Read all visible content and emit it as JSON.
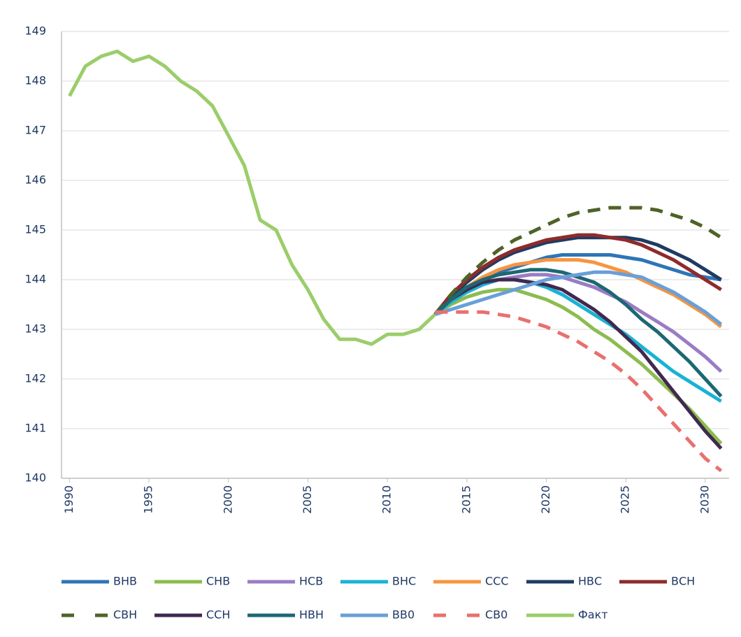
{
  "chart_data": {
    "type": "line",
    "x": [
      1990,
      1991,
      1992,
      1993,
      1994,
      1995,
      1996,
      1997,
      1998,
      1999,
      2000,
      2001,
      2002,
      2003,
      2004,
      2005,
      2006,
      2007,
      2008,
      2009,
      2010,
      2011,
      2012,
      2013,
      2014,
      2015,
      2016,
      2017,
      2018,
      2019,
      2020,
      2021,
      2022,
      2023,
      2024,
      2025,
      2026,
      2027,
      2028,
      2029,
      2030,
      2031
    ],
    "xlim": [
      1989.5,
      2031.5
    ],
    "xticks": [
      1990,
      1995,
      2000,
      2005,
      2010,
      2015,
      2020,
      2025,
      2030
    ],
    "ylim": [
      140,
      149
    ],
    "yticks": [
      140,
      141,
      142,
      143,
      144,
      145,
      146,
      147,
      148,
      149
    ],
    "grid": true,
    "series": [
      {
        "name": "ВНВ",
        "color": "#2e75b6",
        "values": [
          null,
          null,
          null,
          null,
          null,
          null,
          null,
          null,
          null,
          null,
          null,
          null,
          null,
          null,
          null,
          null,
          null,
          null,
          null,
          null,
          null,
          null,
          null,
          143.3,
          143.6,
          143.8,
          144.0,
          144.15,
          144.25,
          144.35,
          144.45,
          144.5,
          144.5,
          144.5,
          144.5,
          144.45,
          144.4,
          144.3,
          144.2,
          144.1,
          144.05,
          144.0
        ]
      },
      {
        "name": "СНВ",
        "color": "#8cbc4f",
        "values": [
          null,
          null,
          null,
          null,
          null,
          null,
          null,
          null,
          null,
          null,
          null,
          null,
          null,
          null,
          null,
          null,
          null,
          null,
          null,
          null,
          null,
          null,
          null,
          143.3,
          143.5,
          143.65,
          143.75,
          143.8,
          143.8,
          143.7,
          143.6,
          143.45,
          143.25,
          143.0,
          142.8,
          142.55,
          142.3,
          142.0,
          141.7,
          141.4,
          141.05,
          140.7
        ]
      },
      {
        "name": "НСВ",
        "color": "#9a7cc4",
        "values": [
          null,
          null,
          null,
          null,
          null,
          null,
          null,
          null,
          null,
          null,
          null,
          null,
          null,
          null,
          null,
          null,
          null,
          null,
          null,
          null,
          null,
          null,
          null,
          143.3,
          143.55,
          143.75,
          143.9,
          144.0,
          144.05,
          144.1,
          144.1,
          144.05,
          143.95,
          143.85,
          143.7,
          143.55,
          143.35,
          143.15,
          142.95,
          142.7,
          142.45,
          142.15
        ]
      },
      {
        "name": "ВНС",
        "color": "#1ab2d4",
        "values": [
          null,
          null,
          null,
          null,
          null,
          null,
          null,
          null,
          null,
          null,
          null,
          null,
          null,
          null,
          null,
          null,
          null,
          null,
          null,
          null,
          null,
          null,
          null,
          143.3,
          143.55,
          143.75,
          143.9,
          144.0,
          144.0,
          143.95,
          143.85,
          143.7,
          143.5,
          143.3,
          143.1,
          142.9,
          142.65,
          142.4,
          142.15,
          141.95,
          141.75,
          141.55
        ]
      },
      {
        "name": "ССС",
        "color": "#f7953f",
        "values": [
          null,
          null,
          null,
          null,
          null,
          null,
          null,
          null,
          null,
          null,
          null,
          null,
          null,
          null,
          null,
          null,
          null,
          null,
          null,
          null,
          null,
          null,
          null,
          143.3,
          143.6,
          143.85,
          144.05,
          144.2,
          144.3,
          144.35,
          144.4,
          144.4,
          144.4,
          144.35,
          144.25,
          144.15,
          144.0,
          143.85,
          143.7,
          143.5,
          143.3,
          143.05
        ]
      },
      {
        "name": "НВС",
        "color": "#1f3b63",
        "values": [
          null,
          null,
          null,
          null,
          null,
          null,
          null,
          null,
          null,
          null,
          null,
          null,
          null,
          null,
          null,
          null,
          null,
          null,
          null,
          null,
          null,
          null,
          null,
          143.3,
          143.65,
          143.95,
          144.2,
          144.4,
          144.55,
          144.65,
          144.75,
          144.8,
          144.85,
          144.85,
          144.85,
          144.85,
          144.8,
          144.7,
          144.55,
          144.4,
          144.2,
          144.0
        ]
      },
      {
        "name": "ВСН",
        "color": "#8e2b2b",
        "values": [
          null,
          null,
          null,
          null,
          null,
          null,
          null,
          null,
          null,
          null,
          null,
          null,
          null,
          null,
          null,
          null,
          null,
          null,
          null,
          null,
          null,
          null,
          null,
          143.3,
          143.7,
          144.0,
          144.25,
          144.45,
          144.6,
          144.7,
          144.8,
          144.85,
          144.9,
          144.9,
          144.85,
          144.8,
          144.7,
          144.55,
          144.4,
          144.2,
          144.0,
          143.8
        ]
      },
      {
        "name": "СВН",
        "color": "#4f6228",
        "dash": true,
        "values": [
          null,
          null,
          null,
          null,
          null,
          null,
          null,
          null,
          null,
          null,
          null,
          null,
          null,
          null,
          null,
          null,
          null,
          null,
          null,
          null,
          null,
          null,
          null,
          143.3,
          143.7,
          144.05,
          144.35,
          144.6,
          144.8,
          144.95,
          145.1,
          145.25,
          145.35,
          145.4,
          145.45,
          145.45,
          145.45,
          145.4,
          145.3,
          145.2,
          145.05,
          144.85
        ]
      },
      {
        "name": "ССН",
        "color": "#40294f",
        "values": [
          null,
          null,
          null,
          null,
          null,
          null,
          null,
          null,
          null,
          null,
          null,
          null,
          null,
          null,
          null,
          null,
          null,
          null,
          null,
          null,
          null,
          null,
          null,
          143.3,
          143.6,
          143.8,
          143.95,
          144.0,
          144.0,
          143.95,
          143.9,
          143.8,
          143.6,
          143.4,
          143.15,
          142.85,
          142.55,
          142.15,
          141.75,
          141.35,
          140.95,
          140.6
        ]
      },
      {
        "name": "НВН",
        "color": "#1d6773",
        "values": [
          null,
          null,
          null,
          null,
          null,
          null,
          null,
          null,
          null,
          null,
          null,
          null,
          null,
          null,
          null,
          null,
          null,
          null,
          null,
          null,
          null,
          null,
          null,
          143.3,
          143.6,
          143.85,
          144.0,
          144.1,
          144.15,
          144.2,
          144.2,
          144.15,
          144.05,
          143.95,
          143.75,
          143.5,
          143.2,
          142.95,
          142.65,
          142.35,
          142.0,
          141.65
        ]
      },
      {
        "name": "ВВ0",
        "color": "#6a9fd8",
        "values": [
          null,
          null,
          null,
          null,
          null,
          null,
          null,
          null,
          null,
          null,
          null,
          null,
          null,
          null,
          null,
          null,
          null,
          null,
          null,
          null,
          null,
          null,
          null,
          143.3,
          143.4,
          143.5,
          143.6,
          143.7,
          143.8,
          143.9,
          144.0,
          144.05,
          144.1,
          144.15,
          144.15,
          144.1,
          144.05,
          143.9,
          143.75,
          143.55,
          143.35,
          143.1
        ]
      },
      {
        "name": "СВ0",
        "color": "#e8706e",
        "dash": true,
        "values": [
          null,
          null,
          null,
          null,
          null,
          null,
          null,
          null,
          null,
          null,
          null,
          null,
          null,
          null,
          null,
          null,
          null,
          null,
          null,
          null,
          null,
          null,
          null,
          143.35,
          143.35,
          143.35,
          143.35,
          143.3,
          143.25,
          143.15,
          143.05,
          142.9,
          142.75,
          142.55,
          142.35,
          142.1,
          141.8,
          141.45,
          141.1,
          140.75,
          140.4,
          140.15
        ]
      },
      {
        "name": "Факт",
        "color": "#9bcd6a",
        "values": [
          147.7,
          148.3,
          148.5,
          148.6,
          148.4,
          148.5,
          148.3,
          148.0,
          147.8,
          147.5,
          146.9,
          146.3,
          145.2,
          145.0,
          144.3,
          143.8,
          143.2,
          142.8,
          142.8,
          142.7,
          142.9,
          142.9,
          143.0,
          143.3,
          null,
          null,
          null,
          null,
          null,
          null,
          null,
          null,
          null,
          null,
          null,
          null,
          null,
          null,
          null,
          null,
          null,
          null
        ]
      }
    ]
  }
}
